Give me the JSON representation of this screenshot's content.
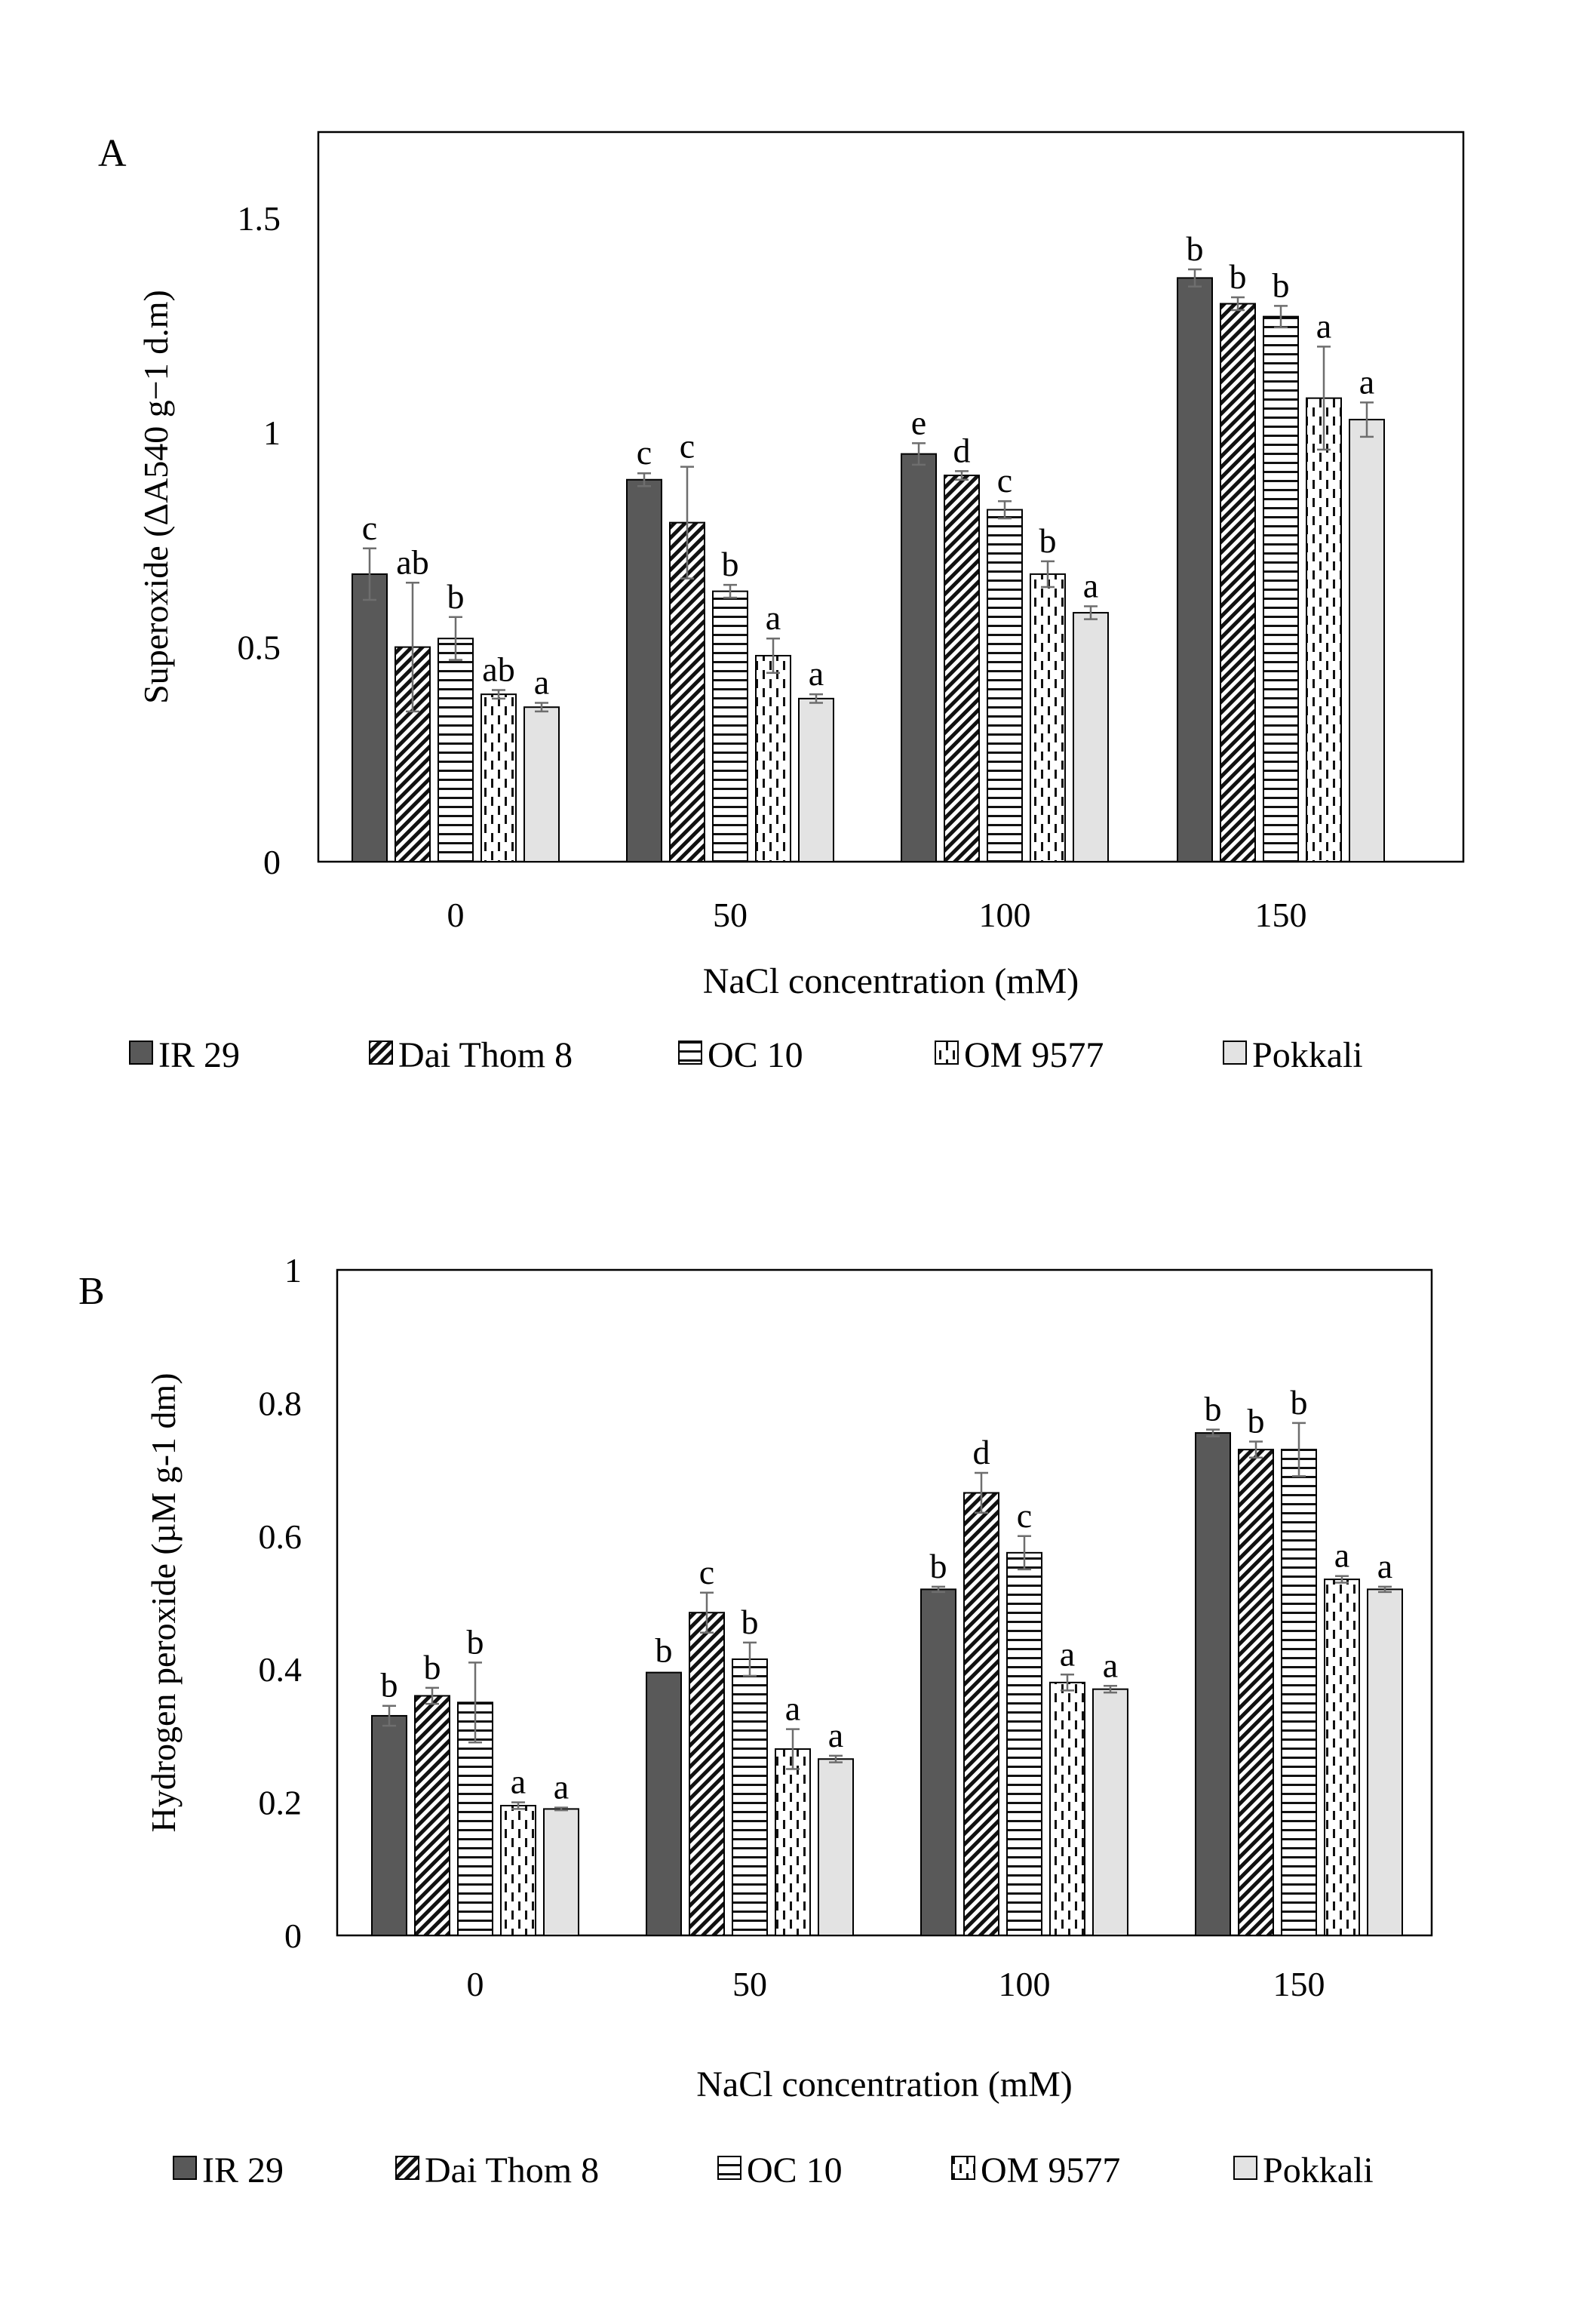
{
  "chart_data": [
    {
      "panel_label": "A",
      "type": "bar",
      "ylabel": "Superoxide (ΔA540 g−1 d.m)",
      "xlabel": "NaCl concentration (mM)",
      "ylim": [
        0,
        1.7
      ],
      "yticks": [
        "0",
        "0.5",
        "1",
        "1.5"
      ],
      "ytick_values": [
        0,
        0.5,
        1,
        1.5
      ],
      "categories": [
        "0",
        "50",
        "100",
        "150"
      ],
      "legend_position": "bottom",
      "grid": false,
      "series": [
        {
          "name": "IR 29",
          "pattern": "solid-dark",
          "values": [
            0.67,
            0.89,
            0.95,
            1.36
          ],
          "errors": [
            0.06,
            0.015,
            0.025,
            0.02
          ],
          "letters": [
            "c",
            "c",
            "e",
            "b"
          ]
        },
        {
          "name": "Dai Thom 8",
          "pattern": "diagonal",
          "values": [
            0.5,
            0.79,
            0.9,
            1.3
          ],
          "errors": [
            0.15,
            0.13,
            0.01,
            0.015
          ],
          "letters": [
            "ab",
            "c",
            "d",
            "b"
          ]
        },
        {
          "name": "OC 10",
          "pattern": "horizontal",
          "values": [
            0.52,
            0.63,
            0.82,
            1.27
          ],
          "errors": [
            0.05,
            0.015,
            0.02,
            0.025
          ],
          "letters": [
            "b",
            "b",
            "c",
            "b"
          ]
        },
        {
          "name": "OM 9577",
          "pattern": "dashed-vertical",
          "values": [
            0.39,
            0.48,
            0.67,
            1.08
          ],
          "errors": [
            0.01,
            0.04,
            0.03,
            0.12
          ],
          "letters": [
            "ab",
            "a",
            "b",
            "a"
          ]
        },
        {
          "name": "Pokkali",
          "pattern": "light",
          "values": [
            0.36,
            0.38,
            0.58,
            1.03
          ],
          "errors": [
            0.01,
            0.01,
            0.015,
            0.04
          ],
          "letters": [
            "a",
            "a",
            "a",
            "a"
          ]
        }
      ]
    },
    {
      "panel_label": "B",
      "type": "bar",
      "ylabel": "Hydrogen peroxide  (µM g-1 dm)",
      "xlabel": "NaCl concentration (mM)",
      "ylim": [
        0,
        1
      ],
      "yticks": [
        "0",
        "0.2",
        "0.4",
        "0.6",
        "0.8",
        "1"
      ],
      "ytick_values": [
        0,
        0.2,
        0.4,
        0.6,
        0.8,
        1
      ],
      "categories": [
        "0",
        "50",
        "100",
        "150"
      ],
      "legend_position": "bottom",
      "grid": false,
      "series": [
        {
          "name": "IR 29",
          "pattern": "solid-dark",
          "values": [
            0.33,
            0.395,
            0.52,
            0.755
          ],
          "errors": [
            0.015,
            0.0,
            0.004,
            0.005
          ],
          "letters": [
            "b",
            "b",
            "b",
            "b"
          ]
        },
        {
          "name": "Dai Thom 8",
          "pattern": "diagonal",
          "values": [
            0.36,
            0.485,
            0.665,
            0.73
          ],
          "errors": [
            0.012,
            0.03,
            0.03,
            0.012
          ],
          "letters": [
            "b",
            "c",
            "d",
            "b"
          ]
        },
        {
          "name": "OC 10",
          "pattern": "horizontal",
          "values": [
            0.35,
            0.415,
            0.575,
            0.73
          ],
          "errors": [
            0.06,
            0.025,
            0.025,
            0.04
          ],
          "letters": [
            "b",
            "b",
            "c",
            "b"
          ]
        },
        {
          "name": "OM 9577",
          "pattern": "dashed-vertical",
          "values": [
            0.195,
            0.28,
            0.38,
            0.535
          ],
          "errors": [
            0.005,
            0.03,
            0.012,
            0.005
          ],
          "letters": [
            "a",
            "a",
            "a",
            "a"
          ]
        },
        {
          "name": "Pokkali",
          "pattern": "light",
          "values": [
            0.19,
            0.265,
            0.37,
            0.52
          ],
          "errors": [
            0.002,
            0.005,
            0.005,
            0.004
          ],
          "letters": [
            "a",
            "a",
            "a",
            "a"
          ]
        }
      ]
    }
  ]
}
